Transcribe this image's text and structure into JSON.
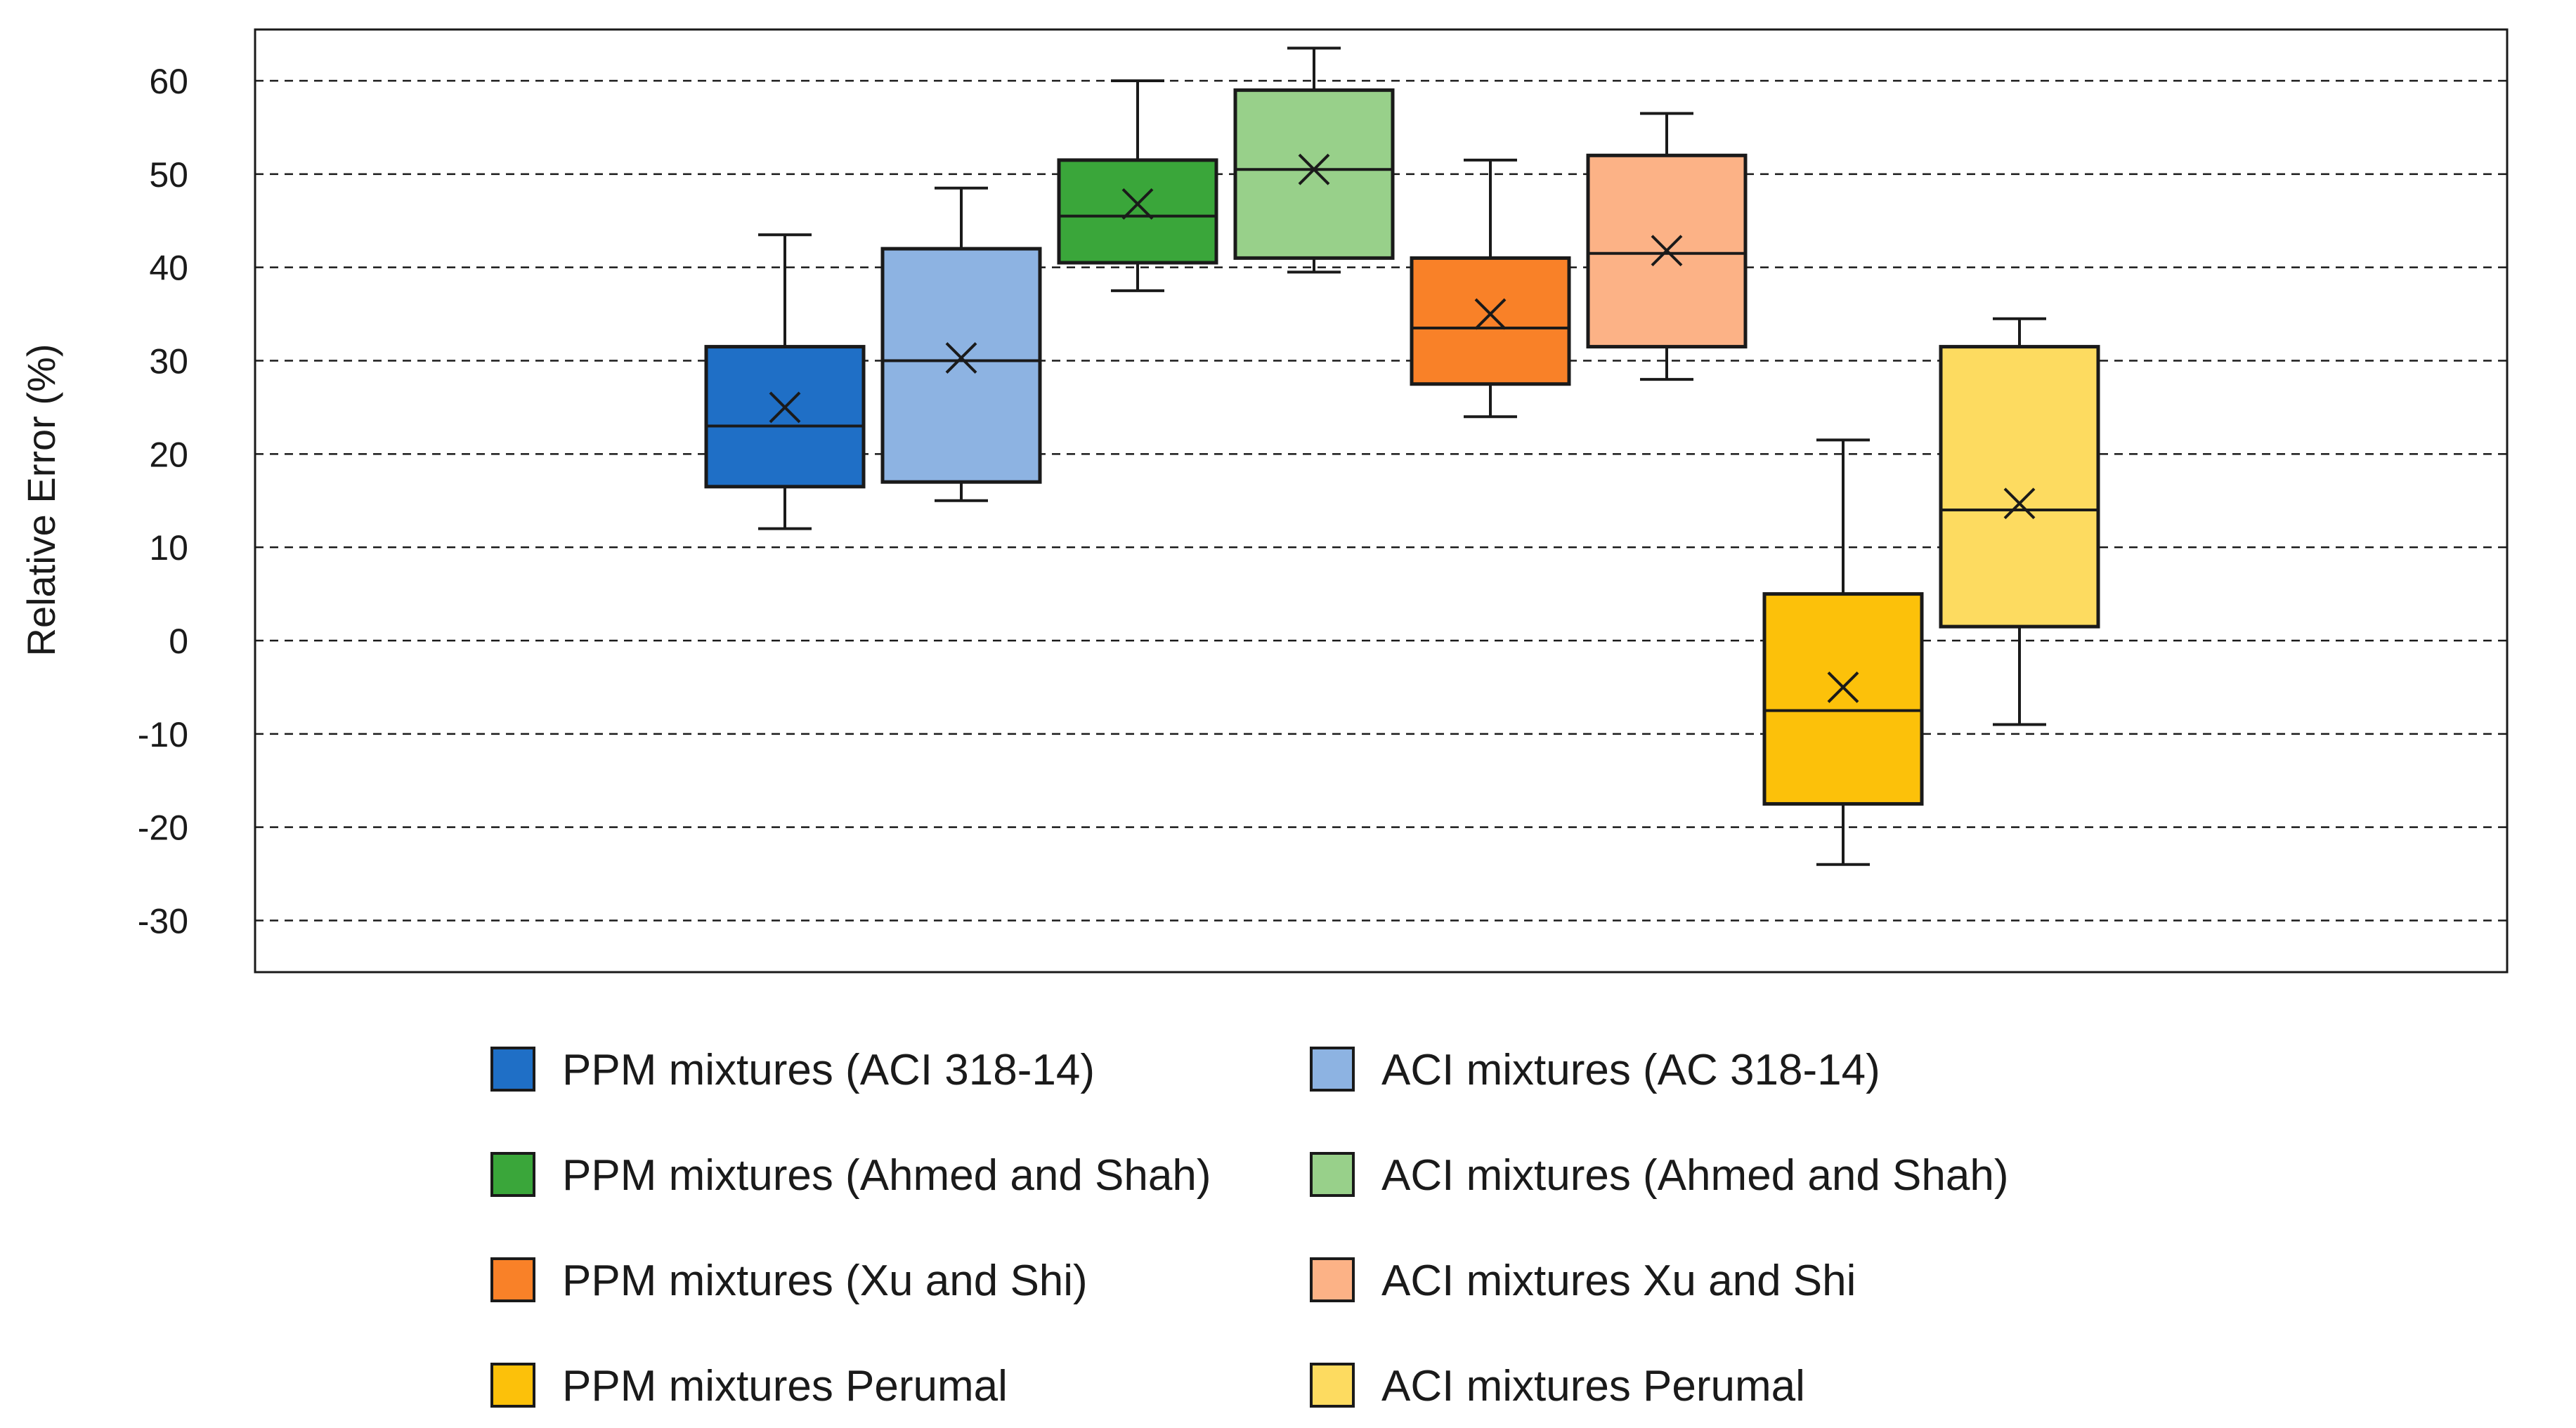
{
  "chart_data": {
    "type": "boxplot",
    "title": "",
    "xlabel": "",
    "ylabel": "Relative Error (%)",
    "ylim": [
      -35,
      66
    ],
    "yticks": [
      60,
      50,
      40,
      30,
      20,
      10,
      0,
      -10,
      -20,
      -30
    ],
    "ytick_labels": [
      "60",
      "50",
      "40",
      "30",
      "20",
      "10",
      "0",
      "-10",
      "-20",
      "-30"
    ],
    "grid": "horizontal dashed",
    "legend_position": "bottom",
    "series": [
      {
        "name": "PPM mixtures (ACI 318-14)",
        "color": "#1f6fc6",
        "whisker_low": 12,
        "q1": 16.5,
        "median": 23,
        "q3": 31.5,
        "whisker_high": 43.5,
        "mean": 25
      },
      {
        "name": "ACI mixtures (AC 318-14)",
        "color": "#8db3e2",
        "whisker_low": 15,
        "q1": 17,
        "median": 30,
        "q3": 42,
        "whisker_high": 48.5,
        "mean": 30.3
      },
      {
        "name": "PPM mixtures (Ahmed and Shah)",
        "color": "#3aa63a",
        "whisker_low": 37.5,
        "q1": 40.5,
        "median": 45.5,
        "q3": 51.5,
        "whisker_high": 60,
        "mean": 46.8
      },
      {
        "name": "ACI mixtures (Ahmed and Shah)",
        "color": "#98d08a",
        "whisker_low": 39.5,
        "q1": 41,
        "median": 50.5,
        "q3": 59,
        "whisker_high": 63.5,
        "mean": 50.5
      },
      {
        "name": "PPM mixtures (Xu and Shi)",
        "color": "#f98128",
        "whisker_low": 24,
        "q1": 27.5,
        "median": 33.5,
        "q3": 41,
        "whisker_high": 51.5,
        "mean": 35
      },
      {
        "name": "ACI mixtures Xu and Shi",
        "color": "#fcb286",
        "whisker_low": 28,
        "q1": 31.5,
        "median": 41.5,
        "q3": 52,
        "whisker_high": 56.5,
        "mean": 41.8
      },
      {
        "name": "PPM mixtures Perumal",
        "color": "#fcc10a",
        "whisker_low": -24,
        "q1": -17.5,
        "median": -7.5,
        "q3": 5,
        "whisker_high": 21.5,
        "mean": -5
      },
      {
        "name": "ACI mixtures Perumal",
        "color": "#fddb60",
        "whisker_low": -9,
        "q1": 1.5,
        "median": 14,
        "q3": 31.5,
        "whisker_high": 34.5,
        "mean": 14.7
      }
    ]
  }
}
